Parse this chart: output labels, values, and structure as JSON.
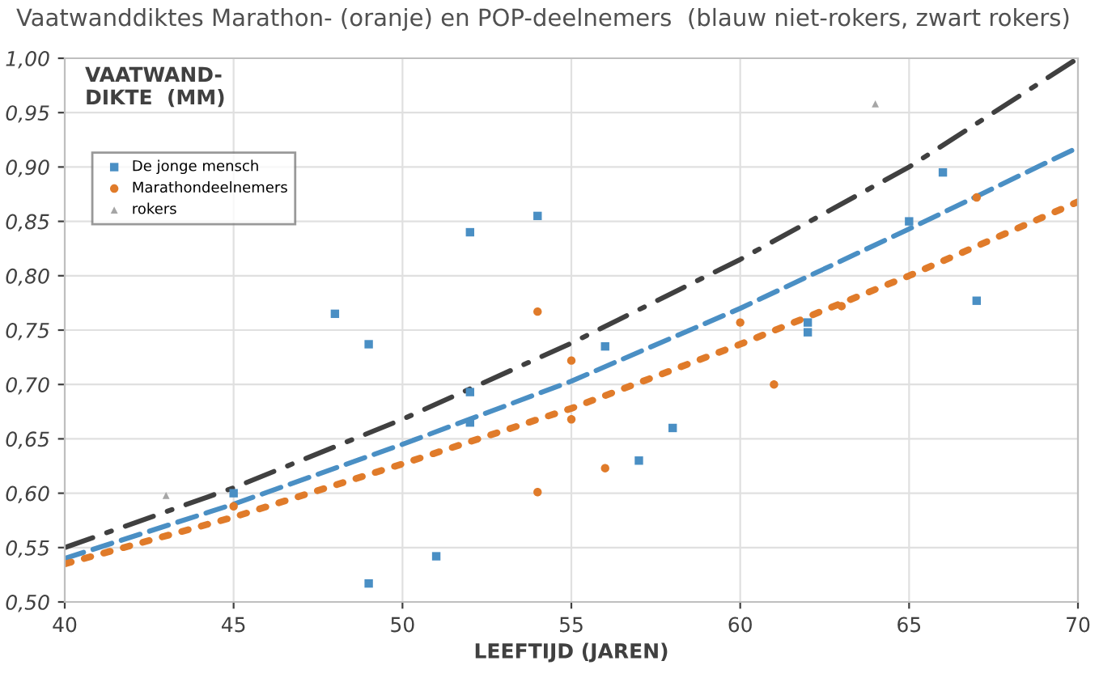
{
  "chart_data": {
    "type": "scatter",
    "title": "Vaatwanddiktes Marathon- (oranje) en POP-deelnemers  (blauw niet-rokers, zwart rokers)",
    "xlabel": "LEEFTIJD (JAREN)",
    "ylabel": "VAATWAND-\nDIKTE  (MM)",
    "xlim": [
      40,
      70
    ],
    "xticks": [
      40,
      45,
      50,
      55,
      60,
      65,
      70
    ],
    "ylim": [
      0.5,
      1.0
    ],
    "yticks": [
      {
        "value": 0.5,
        "label": "0,50"
      },
      {
        "value": 0.55,
        "label": "0,55"
      },
      {
        "value": 0.6,
        "label": "0,60"
      },
      {
        "value": 0.65,
        "label": "0,65"
      },
      {
        "value": 0.7,
        "label": "0,70"
      },
      {
        "value": 0.75,
        "label": "0,75"
      },
      {
        "value": 0.8,
        "label": "0,80"
      },
      {
        "value": 0.85,
        "label": "0,85"
      },
      {
        "value": 0.9,
        "label": "0,90"
      },
      {
        "value": 0.95,
        "label": "0,95"
      },
      {
        "value": 1.0,
        "label": "1,00"
      }
    ],
    "grid": true,
    "legend": "top left",
    "series": [
      {
        "name": "De jonge mensch",
        "color": "#4a8fc4",
        "marker": "square",
        "x": [
          45,
          48,
          49,
          49,
          51,
          52,
          52,
          52,
          54,
          56,
          57,
          58,
          62,
          62,
          65,
          66,
          67
        ],
        "values": [
          0.6,
          0.765,
          0.737,
          0.517,
          0.542,
          0.84,
          0.693,
          0.665,
          0.855,
          0.735,
          0.63,
          0.66,
          0.757,
          0.748,
          0.85,
          0.895,
          0.777
        ]
      },
      {
        "name": "Marathondeelnemers",
        "color": "#e07b2a",
        "marker": "circle",
        "x": [
          45,
          54,
          54,
          55,
          55,
          56,
          60,
          61,
          63,
          67
        ],
        "values": [
          0.588,
          0.767,
          0.601,
          0.722,
          0.668,
          0.623,
          0.757,
          0.7,
          0.772,
          0.872
        ]
      },
      {
        "name": "rokers",
        "color": "#a6a6a6",
        "marker": "triangle",
        "x": [
          43,
          64
        ],
        "values": [
          0.598,
          0.958
        ]
      },
      {
        "type": "line",
        "color": "#4a8fc4",
        "line_style": "dashed",
        "x": [
          40,
          45,
          50,
          55,
          60,
          65,
          70
        ],
        "values": [
          0.54,
          0.59,
          0.645,
          0.703,
          0.77,
          0.843,
          0.918
        ]
      },
      {
        "type": "line",
        "color": "#e07b2a",
        "line_style": "dotted",
        "x": [
          40,
          45,
          50,
          55,
          60,
          65,
          70
        ],
        "values": [
          0.535,
          0.578,
          0.627,
          0.678,
          0.737,
          0.8,
          0.868
        ]
      },
      {
        "type": "line",
        "color": "#404040",
        "line_style": "dashdot",
        "x": [
          40,
          45,
          50,
          55,
          60,
          65,
          70
        ],
        "values": [
          0.55,
          0.605,
          0.668,
          0.738,
          0.815,
          0.9,
          1.0
        ]
      }
    ]
  }
}
